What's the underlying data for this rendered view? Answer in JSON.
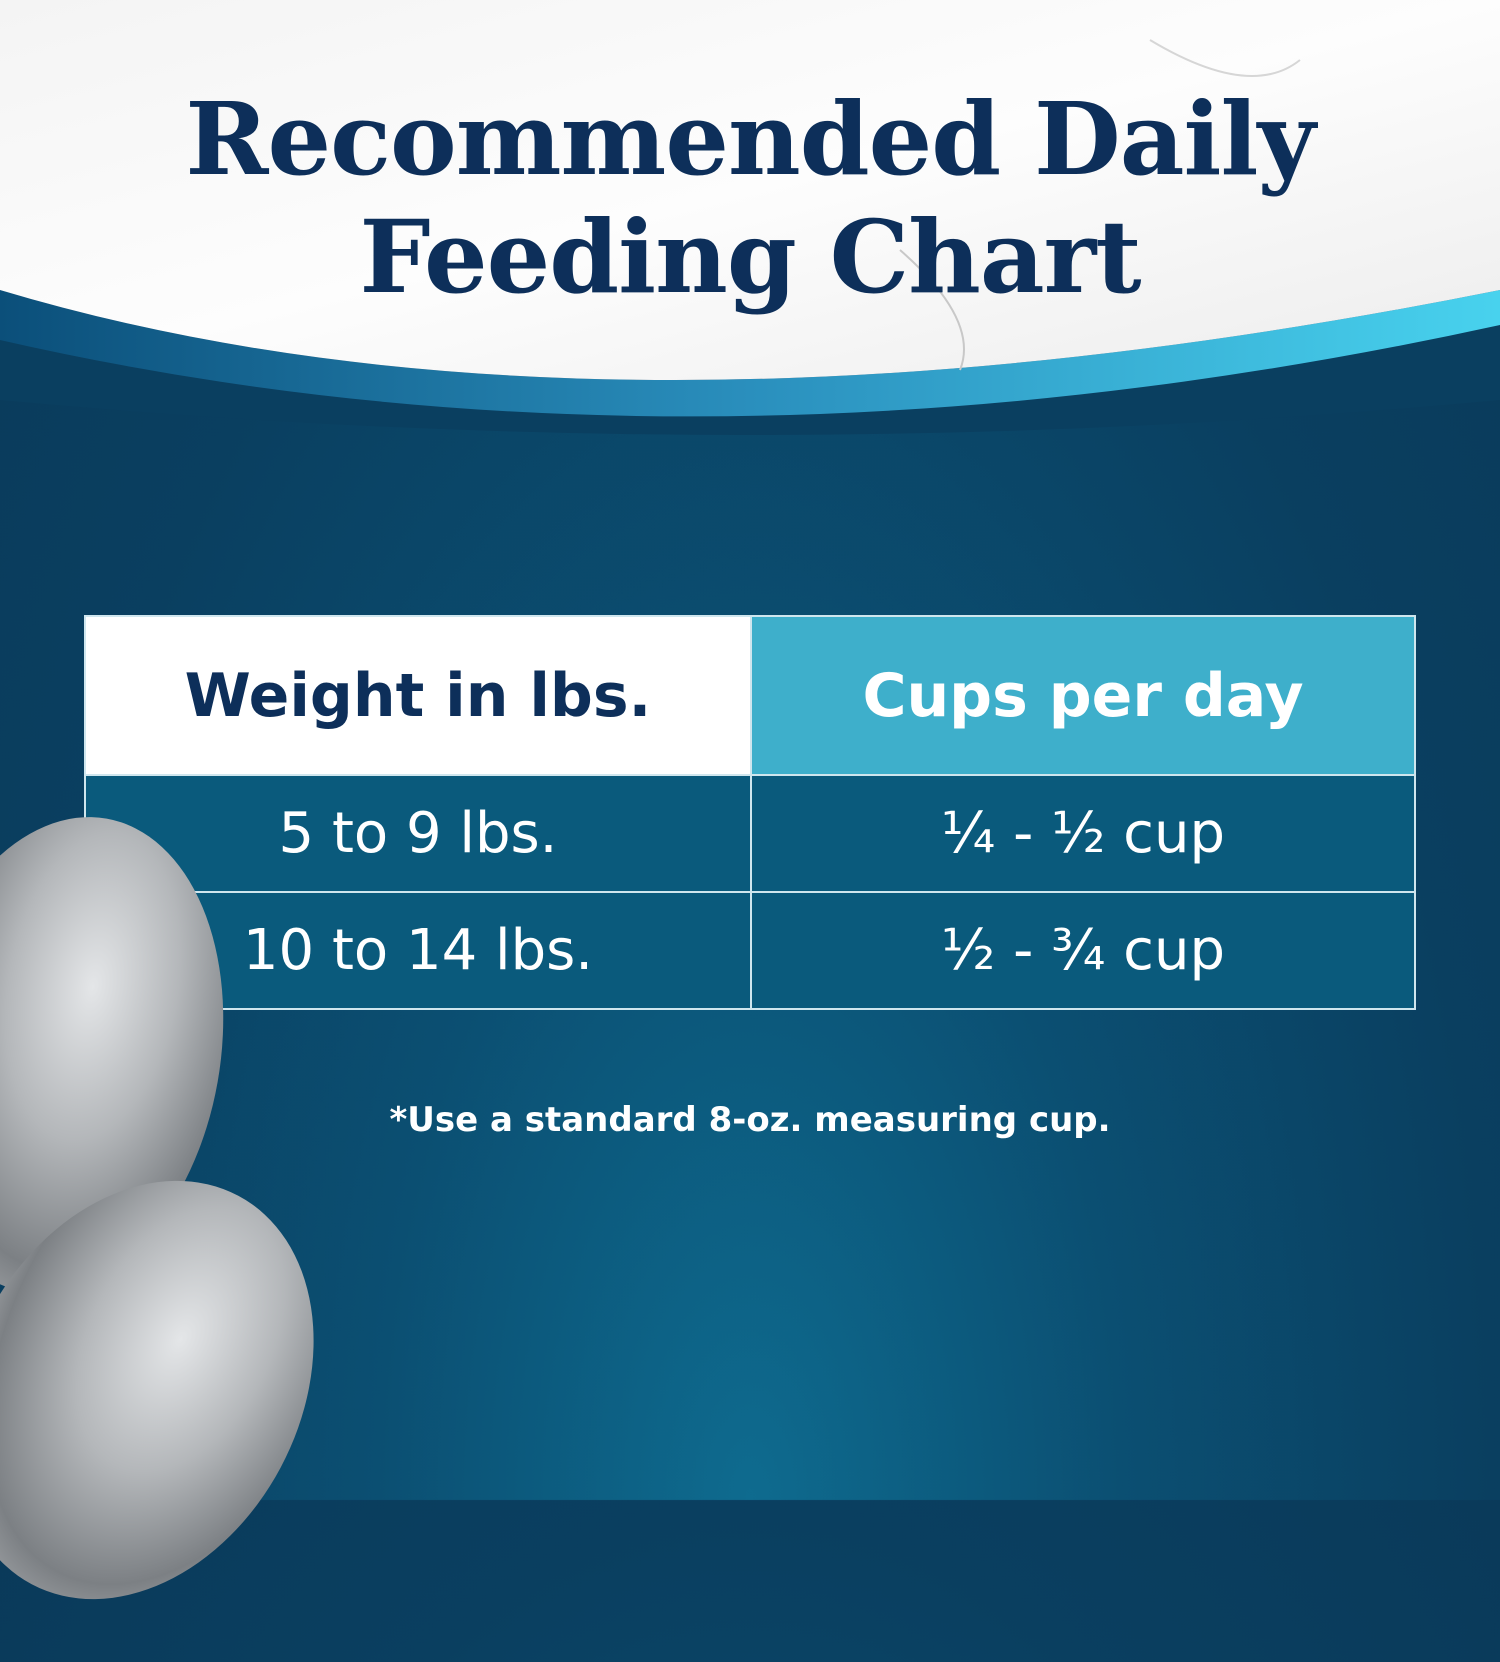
{
  "title": {
    "line1": "Recommended Daily",
    "line2": "Feeding Chart"
  },
  "table": {
    "headers": [
      "Weight in lbs.",
      "Cups per day"
    ],
    "rows": [
      {
        "weight": "5 to 9 lbs.",
        "cups": "¼ - ½ cup"
      },
      {
        "weight": "10 to 14 lbs.",
        "cups": "½ - ¾ cup"
      }
    ]
  },
  "note": "*Use a standard 8-oz. measuring cup.",
  "colors": {
    "navy": "#0d2f5a",
    "header_cyan": "#3eafcb",
    "row_blue": "#0a5a7c",
    "background": "#0a3f60"
  }
}
